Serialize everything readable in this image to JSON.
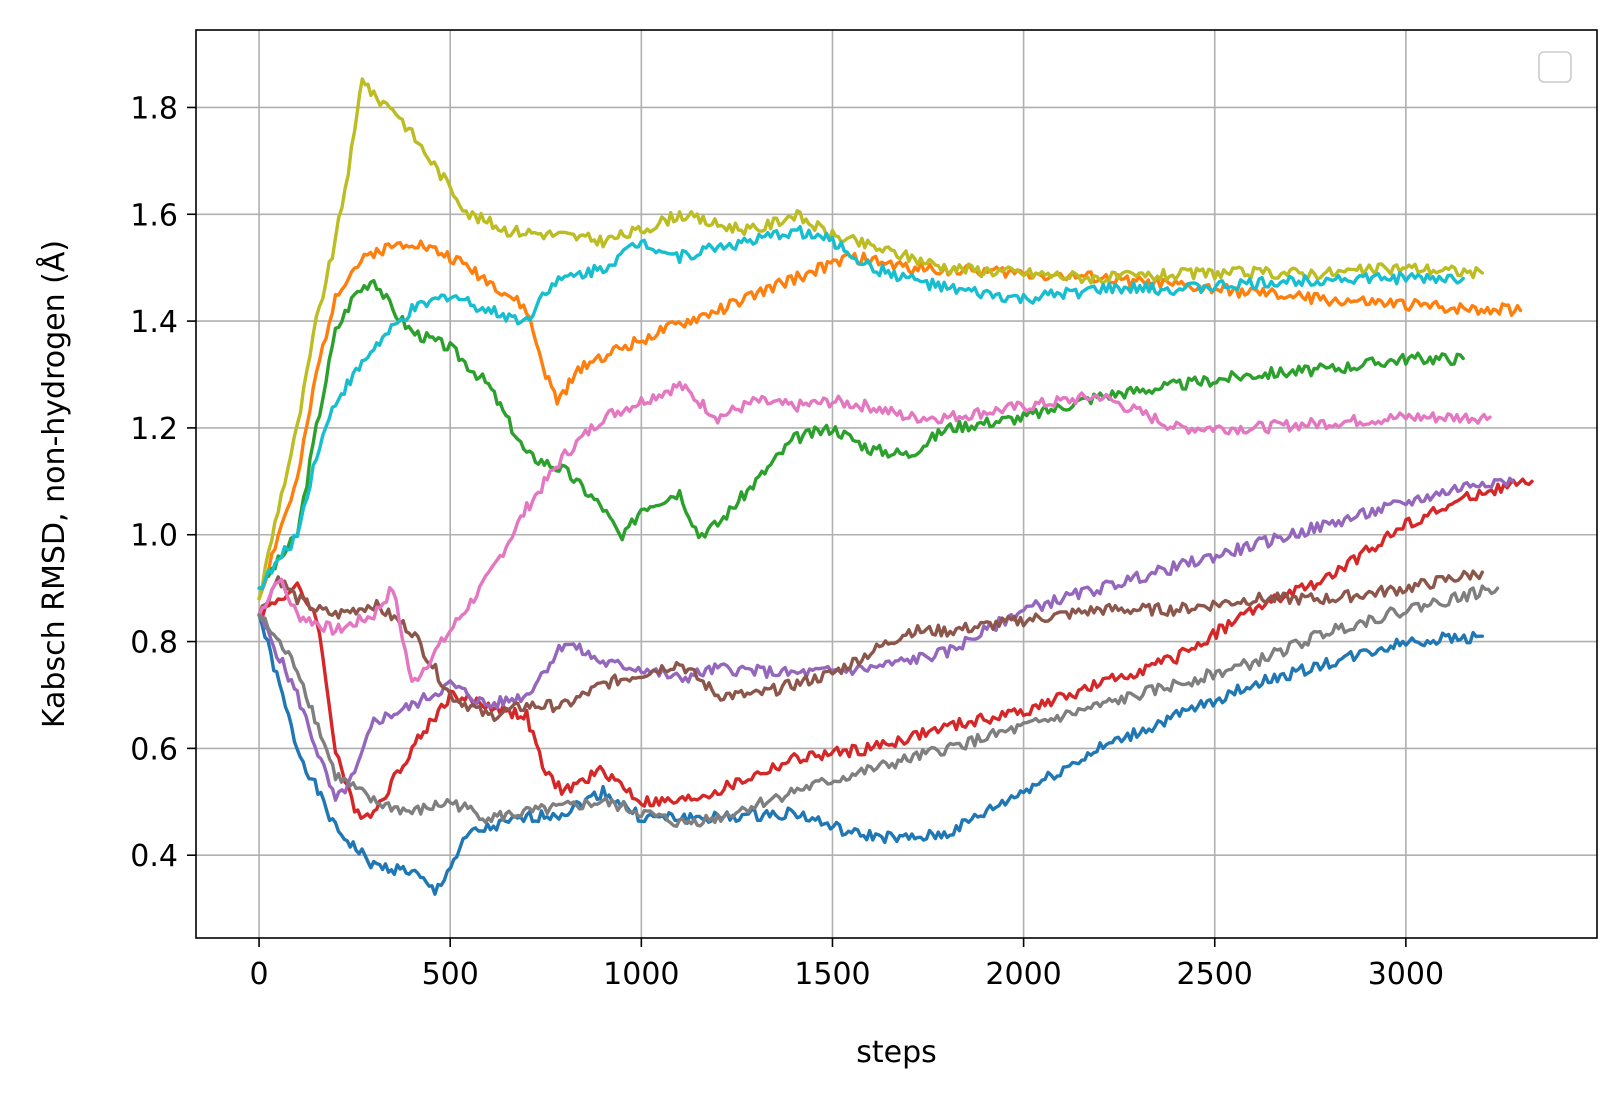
{
  "chart_data": {
    "type": "line",
    "title": "",
    "xlabel": "steps",
    "ylabel": "Kabsch RMSD, non-hydrogen (Å)",
    "xlim": [
      -165,
      3500
    ],
    "ylim": [
      0.245,
      1.945
    ],
    "xticks": [
      0,
      500,
      1000,
      1500,
      2000,
      2500,
      3000
    ],
    "yticks": [
      0.4,
      0.6,
      0.8,
      1.0,
      1.2,
      1.4,
      1.6,
      1.8
    ],
    "xtick_labels": [
      "0",
      "500",
      "1000",
      "1500",
      "2000",
      "2500",
      "3000"
    ],
    "ytick_labels": [
      "0.4",
      "0.6",
      "0.8",
      "1.0",
      "1.2",
      "1.4",
      "1.6",
      "1.8"
    ],
    "grid": true,
    "legend": {
      "position": "top-right",
      "entries": []
    },
    "series": [
      {
        "color": "#1f77b4",
        "points": [
          [
            0,
            0.85
          ],
          [
            100,
            0.6
          ],
          [
            200,
            0.45
          ],
          [
            300,
            0.38
          ],
          [
            400,
            0.37
          ],
          [
            460,
            0.33
          ],
          [
            550,
            0.44
          ],
          [
            700,
            0.47
          ],
          [
            800,
            0.48
          ],
          [
            900,
            0.52
          ],
          [
            1000,
            0.47
          ],
          [
            1200,
            0.47
          ],
          [
            1400,
            0.48
          ],
          [
            1550,
            0.44
          ],
          [
            1700,
            0.43
          ],
          [
            1800,
            0.44
          ],
          [
            2000,
            0.52
          ],
          [
            2200,
            0.6
          ],
          [
            2400,
            0.66
          ],
          [
            2600,
            0.72
          ],
          [
            2800,
            0.76
          ],
          [
            3000,
            0.8
          ],
          [
            3200,
            0.81
          ]
        ]
      },
      {
        "color": "#ff7f0e",
        "points": [
          [
            0,
            0.88
          ],
          [
            50,
            1.0
          ],
          [
            100,
            1.1
          ],
          [
            150,
            1.3
          ],
          [
            200,
            1.45
          ],
          [
            250,
            1.5
          ],
          [
            300,
            1.53
          ],
          [
            400,
            1.55
          ],
          [
            500,
            1.52
          ],
          [
            550,
            1.5
          ],
          [
            650,
            1.45
          ],
          [
            700,
            1.42
          ],
          [
            750,
            1.3
          ],
          [
            780,
            1.25
          ],
          [
            850,
            1.32
          ],
          [
            950,
            1.35
          ],
          [
            1050,
            1.38
          ],
          [
            1200,
            1.42
          ],
          [
            1400,
            1.48
          ],
          [
            1550,
            1.52
          ],
          [
            1700,
            1.5
          ],
          [
            2000,
            1.49
          ],
          [
            2200,
            1.48
          ],
          [
            2500,
            1.46
          ],
          [
            2800,
            1.44
          ],
          [
            3000,
            1.43
          ],
          [
            3300,
            1.42
          ]
        ]
      },
      {
        "color": "#2ca02c",
        "points": [
          [
            0,
            0.9
          ],
          [
            50,
            0.95
          ],
          [
            100,
            1.0
          ],
          [
            150,
            1.2
          ],
          [
            200,
            1.38
          ],
          [
            250,
            1.45
          ],
          [
            300,
            1.48
          ],
          [
            350,
            1.42
          ],
          [
            400,
            1.38
          ],
          [
            500,
            1.35
          ],
          [
            600,
            1.28
          ],
          [
            700,
            1.15
          ],
          [
            800,
            1.12
          ],
          [
            900,
            1.05
          ],
          [
            950,
            0.99
          ],
          [
            1000,
            1.05
          ],
          [
            1100,
            1.08
          ],
          [
            1150,
            1.0
          ],
          [
            1200,
            1.02
          ],
          [
            1300,
            1.1
          ],
          [
            1400,
            1.18
          ],
          [
            1500,
            1.2
          ],
          [
            1600,
            1.16
          ],
          [
            1700,
            1.15
          ],
          [
            1800,
            1.2
          ],
          [
            2000,
            1.22
          ],
          [
            2200,
            1.26
          ],
          [
            2400,
            1.28
          ],
          [
            2600,
            1.3
          ],
          [
            2800,
            1.31
          ],
          [
            3000,
            1.33
          ],
          [
            3150,
            1.33
          ]
        ]
      },
      {
        "color": "#d62728",
        "points": [
          [
            0,
            0.85
          ],
          [
            50,
            0.88
          ],
          [
            100,
            0.9
          ],
          [
            150,
            0.85
          ],
          [
            200,
            0.6
          ],
          [
            250,
            0.48
          ],
          [
            300,
            0.48
          ],
          [
            400,
            0.6
          ],
          [
            500,
            0.7
          ],
          [
            600,
            0.68
          ],
          [
            700,
            0.66
          ],
          [
            750,
            0.55
          ],
          [
            800,
            0.52
          ],
          [
            900,
            0.56
          ],
          [
            1000,
            0.5
          ],
          [
            1100,
            0.5
          ],
          [
            1200,
            0.52
          ],
          [
            1400,
            0.58
          ],
          [
            1600,
            0.6
          ],
          [
            1800,
            0.64
          ],
          [
            2000,
            0.67
          ],
          [
            2200,
            0.72
          ],
          [
            2400,
            0.77
          ],
          [
            2600,
            0.86
          ],
          [
            2800,
            0.92
          ],
          [
            3000,
            1.02
          ],
          [
            3200,
            1.08
          ],
          [
            3330,
            1.1
          ]
        ]
      },
      {
        "color": "#9467bd",
        "points": [
          [
            0,
            0.85
          ],
          [
            100,
            0.7
          ],
          [
            200,
            0.5
          ],
          [
            250,
            0.55
          ],
          [
            300,
            0.65
          ],
          [
            400,
            0.68
          ],
          [
            500,
            0.72
          ],
          [
            600,
            0.68
          ],
          [
            700,
            0.7
          ],
          [
            800,
            0.8
          ],
          [
            900,
            0.76
          ],
          [
            1000,
            0.75
          ],
          [
            1100,
            0.73
          ],
          [
            1200,
            0.75
          ],
          [
            1400,
            0.74
          ],
          [
            1600,
            0.75
          ],
          [
            1800,
            0.78
          ],
          [
            2000,
            0.86
          ],
          [
            2200,
            0.9
          ],
          [
            2400,
            0.94
          ],
          [
            2600,
            0.98
          ],
          [
            2800,
            1.02
          ],
          [
            3000,
            1.06
          ],
          [
            3200,
            1.1
          ],
          [
            3280,
            1.1
          ]
        ]
      },
      {
        "color": "#8c564b",
        "points": [
          [
            0,
            0.85
          ],
          [
            50,
            0.92
          ],
          [
            100,
            0.88
          ],
          [
            150,
            0.86
          ],
          [
            200,
            0.85
          ],
          [
            300,
            0.87
          ],
          [
            400,
            0.82
          ],
          [
            500,
            0.7
          ],
          [
            600,
            0.66
          ],
          [
            700,
            0.68
          ],
          [
            800,
            0.68
          ],
          [
            900,
            0.72
          ],
          [
            1000,
            0.74
          ],
          [
            1100,
            0.76
          ],
          [
            1200,
            0.7
          ],
          [
            1300,
            0.7
          ],
          [
            1400,
            0.72
          ],
          [
            1500,
            0.74
          ],
          [
            1600,
            0.78
          ],
          [
            1700,
            0.82
          ],
          [
            1800,
            0.82
          ],
          [
            2000,
            0.84
          ],
          [
            2200,
            0.86
          ],
          [
            2400,
            0.86
          ],
          [
            2600,
            0.88
          ],
          [
            2800,
            0.88
          ],
          [
            3000,
            0.9
          ],
          [
            3200,
            0.93
          ]
        ]
      },
      {
        "color": "#e377c2",
        "points": [
          [
            0,
            0.85
          ],
          [
            50,
            0.92
          ],
          [
            100,
            0.85
          ],
          [
            200,
            0.82
          ],
          [
            300,
            0.85
          ],
          [
            350,
            0.9
          ],
          [
            400,
            0.72
          ],
          [
            500,
            0.82
          ],
          [
            600,
            0.92
          ],
          [
            700,
            1.05
          ],
          [
            800,
            1.15
          ],
          [
            900,
            1.22
          ],
          [
            1000,
            1.25
          ],
          [
            1100,
            1.28
          ],
          [
            1200,
            1.22
          ],
          [
            1300,
            1.25
          ],
          [
            1400,
            1.24
          ],
          [
            1500,
            1.25
          ],
          [
            1600,
            1.24
          ],
          [
            1700,
            1.22
          ],
          [
            1800,
            1.22
          ],
          [
            2000,
            1.24
          ],
          [
            2200,
            1.26
          ],
          [
            2400,
            1.2
          ],
          [
            2600,
            1.2
          ],
          [
            2800,
            1.21
          ],
          [
            3000,
            1.22
          ],
          [
            3220,
            1.22
          ]
        ]
      },
      {
        "color": "#7f7f7f",
        "points": [
          [
            0,
            0.85
          ],
          [
            100,
            0.75
          ],
          [
            200,
            0.55
          ],
          [
            300,
            0.5
          ],
          [
            400,
            0.48
          ],
          [
            500,
            0.5
          ],
          [
            600,
            0.47
          ],
          [
            700,
            0.48
          ],
          [
            800,
            0.49
          ],
          [
            900,
            0.5
          ],
          [
            1000,
            0.48
          ],
          [
            1100,
            0.46
          ],
          [
            1200,
            0.47
          ],
          [
            1400,
            0.52
          ],
          [
            1600,
            0.56
          ],
          [
            1800,
            0.6
          ],
          [
            2000,
            0.64
          ],
          [
            2200,
            0.68
          ],
          [
            2400,
            0.72
          ],
          [
            2600,
            0.76
          ],
          [
            2800,
            0.82
          ],
          [
            3000,
            0.86
          ],
          [
            3240,
            0.9
          ]
        ]
      },
      {
        "color": "#bcbd22",
        "points": [
          [
            0,
            0.88
          ],
          [
            50,
            1.05
          ],
          [
            100,
            1.2
          ],
          [
            150,
            1.4
          ],
          [
            200,
            1.55
          ],
          [
            250,
            1.75
          ],
          [
            270,
            1.86
          ],
          [
            300,
            1.82
          ],
          [
            350,
            1.8
          ],
          [
            400,
            1.75
          ],
          [
            450,
            1.7
          ],
          [
            500,
            1.65
          ],
          [
            550,
            1.6
          ],
          [
            650,
            1.57
          ],
          [
            800,
            1.56
          ],
          [
            900,
            1.55
          ],
          [
            1000,
            1.57
          ],
          [
            1100,
            1.6
          ],
          [
            1200,
            1.58
          ],
          [
            1300,
            1.57
          ],
          [
            1400,
            1.6
          ],
          [
            1500,
            1.56
          ],
          [
            1600,
            1.54
          ],
          [
            1700,
            1.52
          ],
          [
            1800,
            1.5
          ],
          [
            2000,
            1.49
          ],
          [
            2200,
            1.48
          ],
          [
            2500,
            1.49
          ],
          [
            2800,
            1.49
          ],
          [
            3000,
            1.5
          ],
          [
            3200,
            1.49
          ]
        ]
      },
      {
        "color": "#17becf",
        "points": [
          [
            0,
            0.9
          ],
          [
            50,
            0.95
          ],
          [
            100,
            1.0
          ],
          [
            150,
            1.15
          ],
          [
            200,
            1.25
          ],
          [
            300,
            1.35
          ],
          [
            400,
            1.42
          ],
          [
            500,
            1.45
          ],
          [
            600,
            1.42
          ],
          [
            700,
            1.4
          ],
          [
            750,
            1.46
          ],
          [
            800,
            1.48
          ],
          [
            900,
            1.5
          ],
          [
            1000,
            1.55
          ],
          [
            1100,
            1.52
          ],
          [
            1200,
            1.54
          ],
          [
            1300,
            1.55
          ],
          [
            1400,
            1.57
          ],
          [
            1500,
            1.55
          ],
          [
            1600,
            1.5
          ],
          [
            1700,
            1.48
          ],
          [
            1800,
            1.46
          ],
          [
            2000,
            1.44
          ],
          [
            2200,
            1.46
          ],
          [
            2400,
            1.46
          ],
          [
            2600,
            1.47
          ],
          [
            2800,
            1.48
          ],
          [
            3000,
            1.48
          ],
          [
            3150,
            1.48
          ]
        ]
      }
    ]
  }
}
